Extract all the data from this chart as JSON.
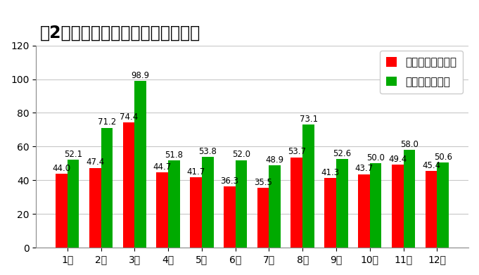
{
  "title": "　2年間、ディズニー月別混雑状況",
  "title_display": "【2年間】ディズニー月別混雑状況",
  "months": [
    "1月",
    "2月",
    "3月",
    "4月",
    "5月",
    "6月",
    "7月",
    "8月",
    "9月",
    "10月",
    "11月",
    "12月"
  ],
  "disneyland": [
    44.0,
    47.4,
    74.4,
    44.7,
    41.7,
    36.3,
    35.5,
    53.7,
    41.3,
    43.7,
    49.4,
    45.4
  ],
  "disneysea": [
    52.1,
    71.2,
    98.9,
    51.8,
    53.8,
    52.0,
    48.9,
    73.1,
    52.6,
    50.0,
    58.0,
    50.6
  ],
  "land_color": "#ff0000",
  "sea_color": "#00aa00",
  "land_label": "ディズニーランド",
  "sea_label": "ディズニーシー",
  "ylim": [
    0,
    120
  ],
  "yticks": [
    0,
    20,
    40,
    60,
    80,
    100,
    120
  ],
  "bar_width": 0.35,
  "title_fontsize": 17,
  "label_fontsize": 8.5,
  "tick_fontsize": 10,
  "legend_fontsize": 11,
  "bg_color": "#ffffff",
  "grid_color": "#c8c8c8"
}
